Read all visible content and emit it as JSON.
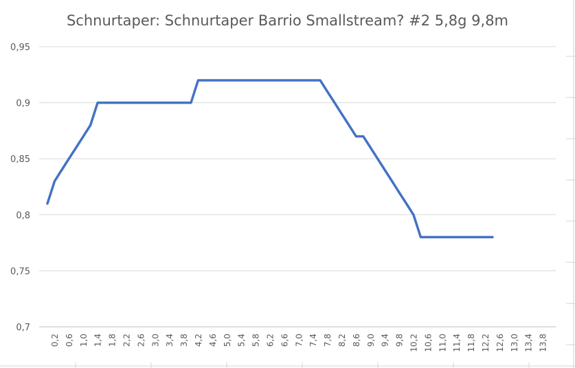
{
  "chart_data": {
    "type": "line",
    "title": "Schnurtaper: Schnurtaper Barrio Smallstream? #2 5,8g 9,8m",
    "xlabel": "",
    "ylabel": "",
    "ylim": [
      0.7,
      0.95
    ],
    "y_ticks": [
      "0,7",
      "0,75",
      "0,8",
      "0,85",
      "0,9",
      "0,95"
    ],
    "x_ticks": [
      "0,2",
      "0,6",
      "1,0",
      "1,4",
      "1,8",
      "2,2",
      "2,6",
      "3,0",
      "3,4",
      "3,8",
      "4,2",
      "4,6",
      "5,0",
      "5,4",
      "5,8",
      "6,2",
      "6,6",
      "7,0",
      "7,4",
      "7,8",
      "8,2",
      "8,6",
      "9,0",
      "9,4",
      "9,8",
      "10,2",
      "10,6",
      "11,0",
      "11,4",
      "11,8",
      "12,2",
      "12,6",
      "13,0",
      "13,4",
      "13,8"
    ],
    "grid": true,
    "legend": "none",
    "series_color": "#4472c4",
    "series": [
      {
        "name": "",
        "values": [
          0.81,
          0.83,
          0.84,
          0.85,
          0.86,
          0.87,
          0.88,
          0.9,
          0.9,
          0.9,
          0.9,
          0.9,
          0.9,
          0.9,
          0.9,
          0.9,
          0.9,
          0.9,
          0.9,
          0.9,
          0.9,
          0.92,
          0.92,
          0.92,
          0.92,
          0.92,
          0.92,
          0.92,
          0.92,
          0.92,
          0.92,
          0.92,
          0.92,
          0.92,
          0.92,
          0.92,
          0.92,
          0.92,
          0.92,
          0.91,
          0.9,
          0.89,
          0.88,
          0.87,
          0.87,
          0.86,
          0.85,
          0.84,
          0.83,
          0.82,
          0.81,
          0.8,
          0.78,
          0.78,
          0.78,
          0.78,
          0.78,
          0.78,
          0.78,
          0.78,
          0.78,
          0.78,
          0.78
        ]
      }
    ]
  }
}
